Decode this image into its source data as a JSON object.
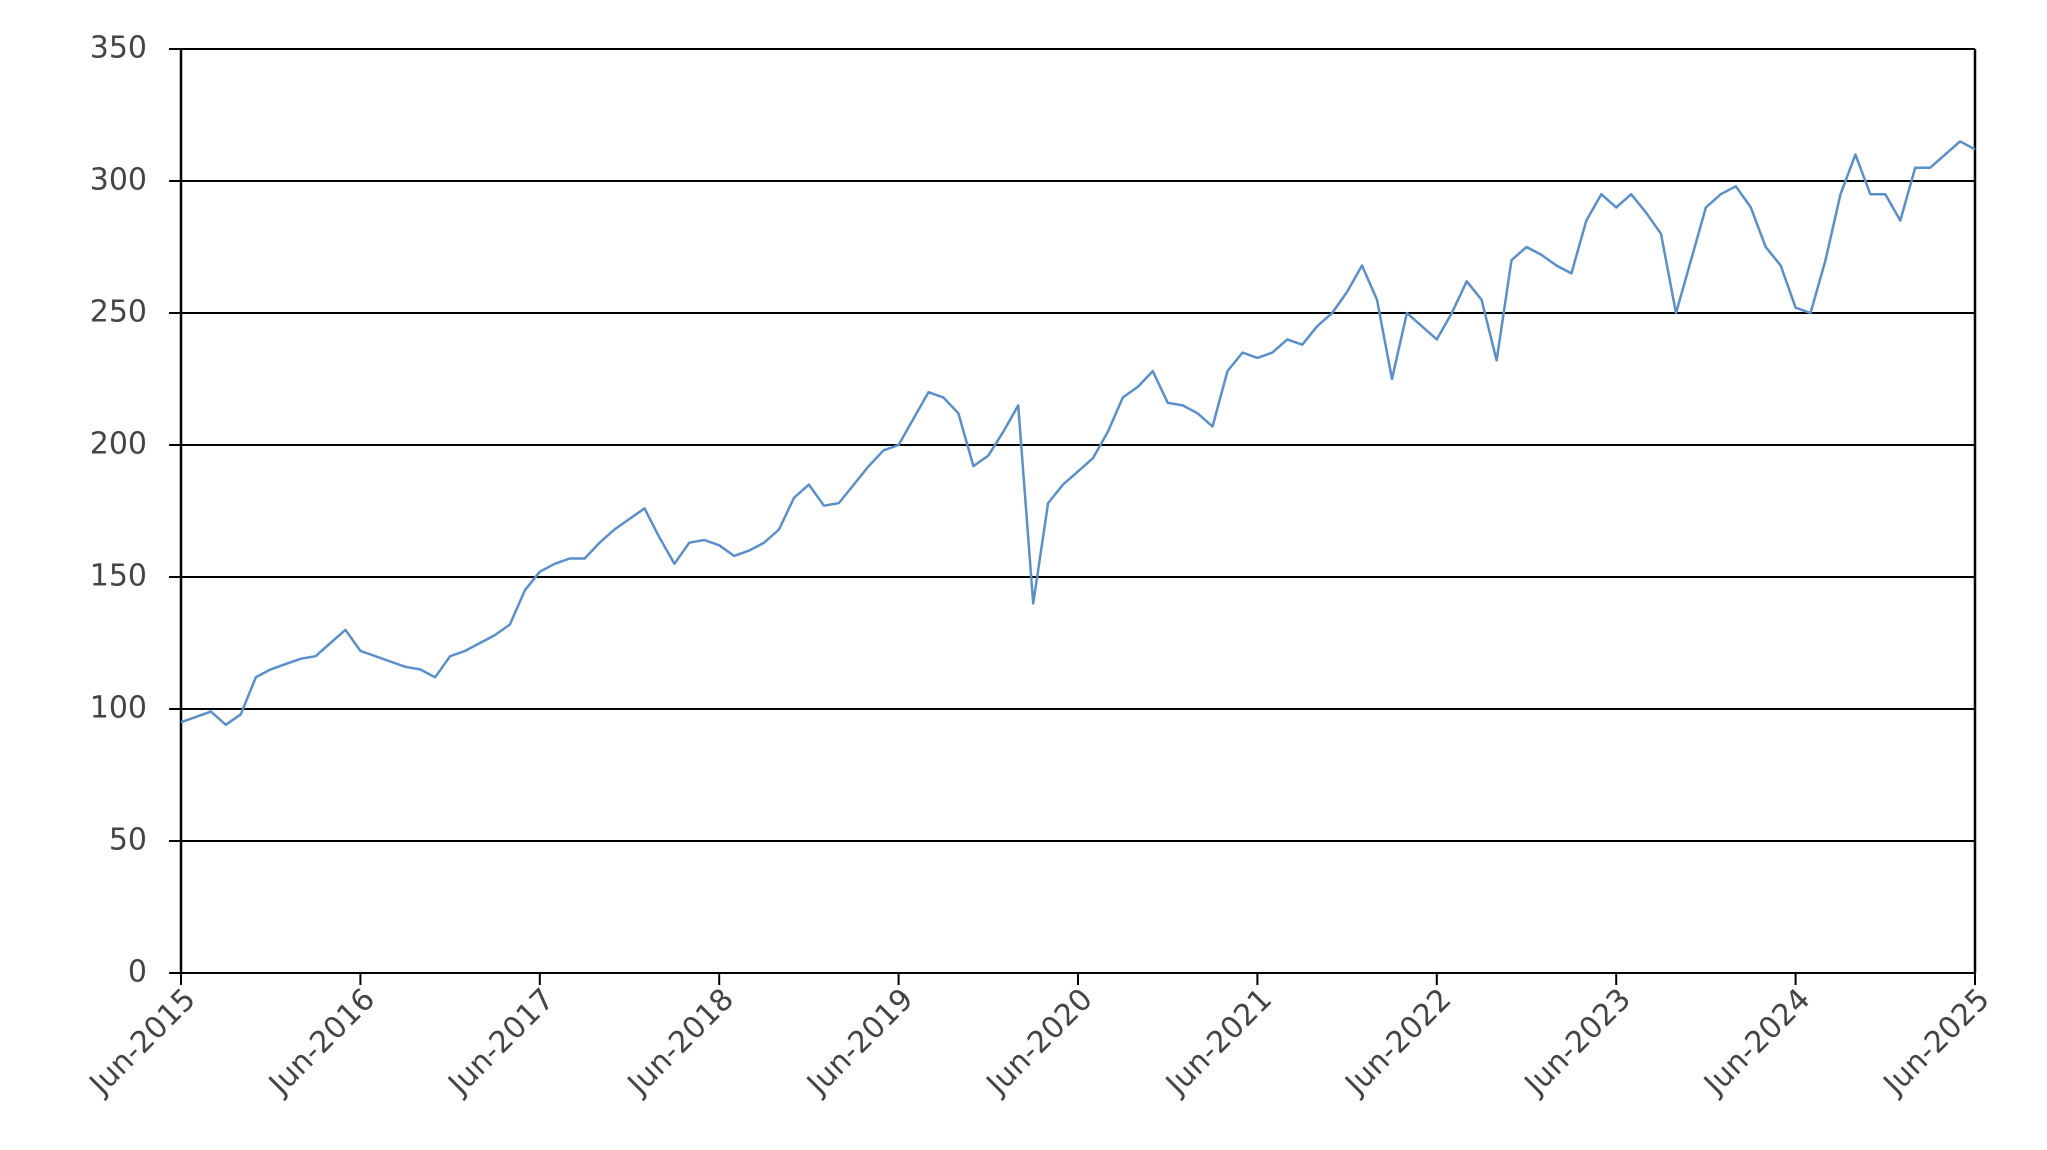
{
  "chart_data": {
    "type": "line",
    "x": [
      "2015-06",
      "2015-07",
      "2015-08",
      "2015-09",
      "2015-10",
      "2015-11",
      "2015-12",
      "2016-01",
      "2016-02",
      "2016-03",
      "2016-04",
      "2016-05",
      "2016-06",
      "2016-07",
      "2016-08",
      "2016-09",
      "2016-10",
      "2016-11",
      "2016-12",
      "2017-01",
      "2017-02",
      "2017-03",
      "2017-04",
      "2017-05",
      "2017-06",
      "2017-07",
      "2017-08",
      "2017-09",
      "2017-10",
      "2017-11",
      "2017-12",
      "2018-01",
      "2018-02",
      "2018-03",
      "2018-04",
      "2018-05",
      "2018-06",
      "2018-07",
      "2018-08",
      "2018-09",
      "2018-10",
      "2018-11",
      "2018-12",
      "2019-01",
      "2019-02",
      "2019-03",
      "2019-04",
      "2019-05",
      "2019-06",
      "2019-07",
      "2019-08",
      "2019-09",
      "2019-10",
      "2019-11",
      "2019-12",
      "2020-01",
      "2020-02",
      "2020-03",
      "2020-04",
      "2020-05",
      "2020-06",
      "2020-07",
      "2020-08",
      "2020-09",
      "2020-10",
      "2020-11",
      "2020-12",
      "2021-01",
      "2021-02",
      "2021-03",
      "2021-04",
      "2021-05",
      "2021-06",
      "2021-07",
      "2021-08",
      "2021-09",
      "2021-10",
      "2021-11",
      "2021-12",
      "2022-01",
      "2022-02",
      "2022-03",
      "2022-04",
      "2022-05",
      "2022-06",
      "2022-07",
      "2022-08",
      "2022-09",
      "2022-10",
      "2022-11",
      "2022-12",
      "2023-01",
      "2023-02",
      "2023-03",
      "2023-04",
      "2023-05",
      "2023-06",
      "2023-07",
      "2023-08",
      "2023-09",
      "2023-10",
      "2023-11",
      "2023-12",
      "2024-01",
      "2024-02",
      "2024-03",
      "2024-04",
      "2024-05",
      "2024-06",
      "2024-07",
      "2024-08",
      "2024-09",
      "2024-10",
      "2024-11",
      "2024-12",
      "2025-01",
      "2025-02",
      "2025-03",
      "2025-04",
      "2025-05",
      "2025-06"
    ],
    "series": [
      {
        "color": "#5b8fc9",
        "values": [
          95,
          97,
          99,
          94,
          98,
          112,
          115,
          117,
          119,
          120,
          125,
          130,
          122,
          120,
          118,
          116,
          115,
          112,
          120,
          122,
          125,
          128,
          132,
          145,
          152,
          155,
          157,
          157,
          163,
          168,
          172,
          176,
          165,
          155,
          163,
          164,
          162,
          158,
          160,
          163,
          168,
          180,
          185,
          177,
          178,
          185,
          192,
          198,
          200,
          210,
          220,
          218,
          212,
          192,
          196,
          205,
          215,
          140,
          178,
          185,
          190,
          195,
          205,
          218,
          222,
          228,
          216,
          215,
          212,
          207,
          228,
          235,
          233,
          235,
          240,
          238,
          245,
          250,
          258,
          268,
          255,
          225,
          250,
          245,
          240,
          250,
          262,
          255,
          232,
          270,
          275,
          272,
          268,
          265,
          285,
          295,
          290,
          295,
          288,
          280,
          250,
          270,
          290,
          295,
          298,
          290,
          275,
          268,
          252,
          250,
          270,
          295,
          310,
          295,
          295,
          285,
          305,
          305,
          310,
          315,
          312
        ]
      }
    ],
    "xlim": [
      "2015-06",
      "2025-06"
    ],
    "xticks": [
      {
        "value": "2015-06",
        "label": "Jun-2015"
      },
      {
        "value": "2016-06",
        "label": "Jun-2016"
      },
      {
        "value": "2017-06",
        "label": "Jun-2017"
      },
      {
        "value": "2018-06",
        "label": "Jun-2018"
      },
      {
        "value": "2019-06",
        "label": "Jun-2019"
      },
      {
        "value": "2020-06",
        "label": "Jun-2020"
      },
      {
        "value": "2021-06",
        "label": "Jun-2021"
      },
      {
        "value": "2022-06",
        "label": "Jun-2022"
      },
      {
        "value": "2023-06",
        "label": "Jun-2023"
      },
      {
        "value": "2024-06",
        "label": "Jun-2024"
      },
      {
        "value": "2025-06",
        "label": "Jun-2025"
      }
    ],
    "ylim": [
      0,
      350
    ],
    "yticks": [
      0,
      50,
      100,
      150,
      200,
      250,
      300,
      350
    ],
    "grid": true
  }
}
